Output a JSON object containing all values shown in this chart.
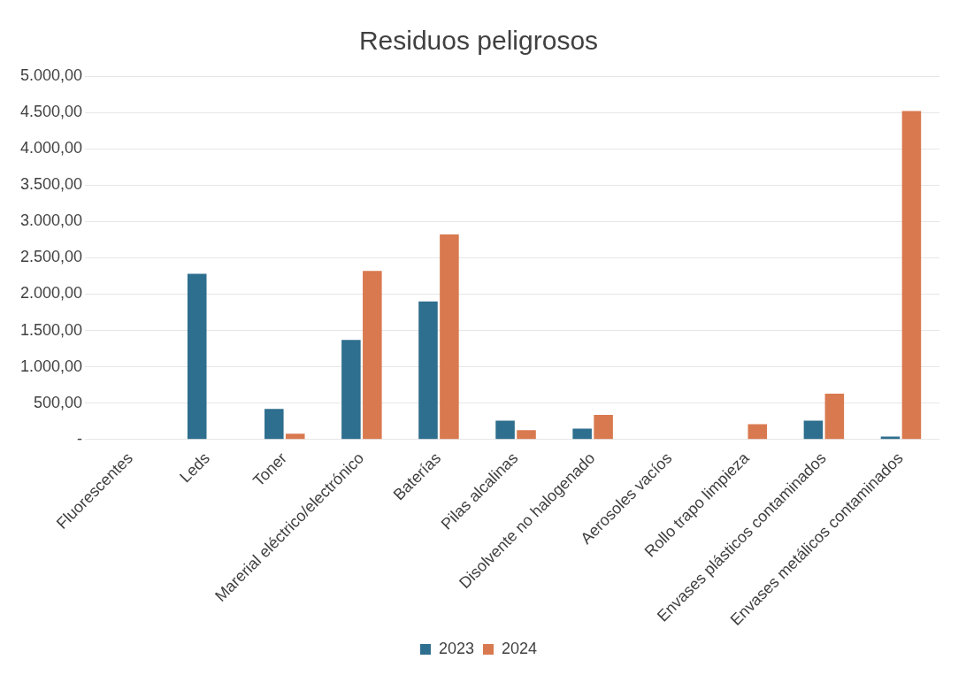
{
  "chart_data": {
    "type": "bar",
    "title": "Residuos peligrosos",
    "categories": [
      "Fluorescentes",
      "Leds",
      "Toner",
      "Marerial eléctrico/electrónico",
      "Baterías",
      "Pilas alcalinas",
      "Disolvente no halogenado",
      "Aerosoles vacíos",
      "Rollo trapo limpieza",
      "Envases plásticos contaminados",
      "Envases metálicos contaminados"
    ],
    "series": [
      {
        "name": "2023",
        "color": "#2e6e8e",
        "values": [
          null,
          2280,
          420,
          1370,
          1900,
          260,
          150,
          null,
          null,
          260,
          40
        ]
      },
      {
        "name": "2024",
        "color": "#d9794f",
        "values": [
          null,
          0,
          80,
          2320,
          2820,
          130,
          340,
          null,
          210,
          630,
          4520
        ]
      }
    ],
    "ylim": [
      0,
      5000
    ],
    "yticks": [
      {
        "value": 0,
        "label": "-"
      },
      {
        "value": 500,
        "label": "500,00"
      },
      {
        "value": 1000,
        "label": "1.000,00"
      },
      {
        "value": 1500,
        "label": "1.500,00"
      },
      {
        "value": 2000,
        "label": "2.000,00"
      },
      {
        "value": 2500,
        "label": "2.500,00"
      },
      {
        "value": 3000,
        "label": "3.000,00"
      },
      {
        "value": 3500,
        "label": "3.500,00"
      },
      {
        "value": 4000,
        "label": "4.000,00"
      },
      {
        "value": 4500,
        "label": "4.500,00"
      },
      {
        "value": 5000,
        "label": "5.000,00"
      }
    ],
    "grid": "y",
    "legend": "bottom"
  }
}
